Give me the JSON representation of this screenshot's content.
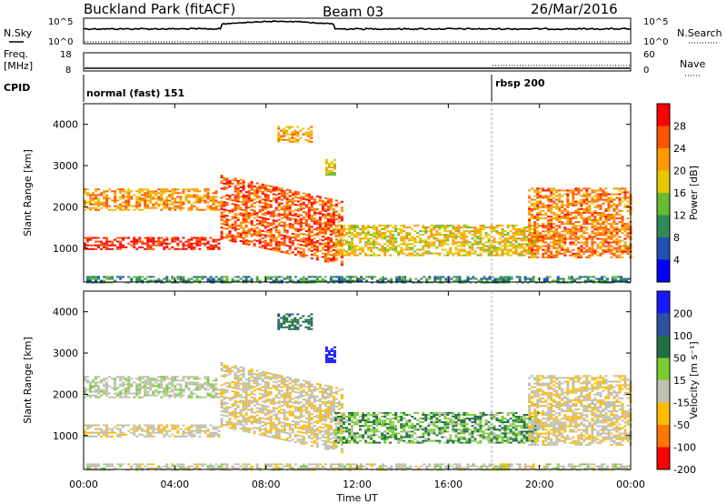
{
  "header": {
    "station": "Buckland Park (fitACF)",
    "beam": "Beam 03",
    "date": "26/Mar/2016"
  },
  "top_panels": {
    "nsky_label": "N.Sky",
    "nsearch_label": "N.Search",
    "noise_ticks": [
      "10^5",
      "10^0"
    ],
    "freq_label": "Freq.",
    "freq_unit": "[MHz]",
    "freq_ticks": [
      "18",
      "8"
    ],
    "nave_label": "Nave",
    "nave_ticks": [
      "60",
      "0"
    ],
    "cpid_label": "CPID",
    "cpid_modes": [
      {
        "name": "normal (fast) 151",
        "start_hour": 0
      },
      {
        "name": "rbsp 200",
        "start_hour": 18
      }
    ]
  },
  "axes": {
    "xlabel": "Time UT",
    "ylabel": "Slant Range [km]",
    "x_ticks": [
      "00:00",
      "04:00",
      "08:00",
      "12:00",
      "16:00",
      "20:00",
      "00:00"
    ],
    "y_ticks": [
      "1000",
      "2000",
      "3000",
      "4000"
    ]
  },
  "colorbars": {
    "power": {
      "label": "Power [dB]",
      "ticks": [
        "4",
        "8",
        "12",
        "16",
        "20",
        "24",
        "28"
      ],
      "colors": [
        "#0000ff",
        "#2050b0",
        "#2e8b57",
        "#66bb33",
        "#e6c800",
        "#ff9900",
        "#ff5500",
        "#ff0000"
      ]
    },
    "velocity": {
      "label": "Velocity [m s⁻¹]",
      "ticks": [
        "200",
        "100",
        "50",
        "15",
        "-15",
        "-50",
        "-100",
        "-200"
      ],
      "colors": [
        "#1a1aff",
        "#3050a0",
        "#207040",
        "#7acc33",
        "#c0c0b0",
        "#ffbb00",
        "#ff7700",
        "#ff0000"
      ]
    }
  },
  "chart_data": {
    "type": "heatmap",
    "x_range_hours": [
      0,
      24
    ],
    "y_range_km": [
      180,
      4500
    ],
    "scatter_echoes": [
      {
        "t0": 0,
        "t1": 6,
        "r0": 1000,
        "r1": 1300,
        "power_db": 29,
        "velocity": -5
      },
      {
        "t0": 0,
        "t1": 6,
        "r0": 1950,
        "r1": 2450,
        "power_db": 22,
        "velocity": 5
      },
      {
        "t0": 6,
        "t1": 11.3,
        "r0": 950,
        "r1": 2500,
        "power_db": 26,
        "velocity": -8,
        "slanting": true
      },
      {
        "t0": 8.5,
        "t1": 10,
        "r0": 3600,
        "r1": 4000,
        "power_db": 22,
        "velocity": 60
      },
      {
        "t0": 10.6,
        "t1": 11,
        "r0": 2800,
        "r1": 3200,
        "power_db": 18,
        "velocity": 220
      },
      {
        "t0": 11,
        "t1": 20,
        "r0": 850,
        "r1": 1600,
        "power_db": 19,
        "velocity": 30
      },
      {
        "t0": 19.5,
        "t1": 24,
        "r0": 800,
        "r1": 2500,
        "power_db": 24,
        "velocity": -10
      },
      {
        "t0": 0,
        "t1": 24,
        "r0": 190,
        "r1": 330,
        "power_db": 10,
        "velocity": 0
      }
    ]
  }
}
